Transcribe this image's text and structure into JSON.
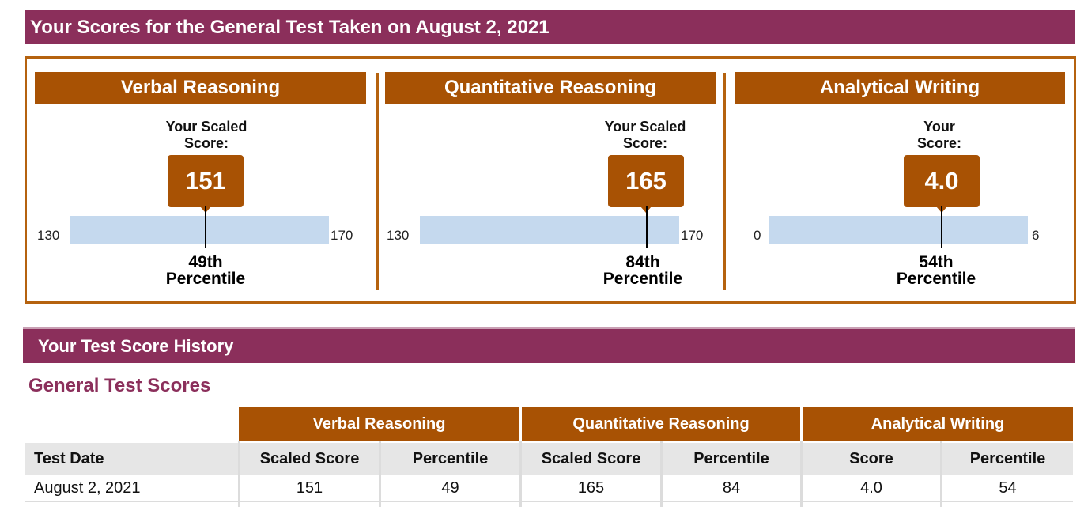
{
  "page": {
    "title": "Your Scores for the General Test Taken on August 2, 2021",
    "history_title": "Your Test Score History",
    "general_scores_title": "General Test Scores"
  },
  "sections": [
    {
      "name": "Verbal Reasoning",
      "label_line1": "Your Scaled",
      "label_line2": "Score:",
      "score": "151",
      "min": "130",
      "max": "170",
      "percentile": "49th",
      "percentile_label": "Percentile"
    },
    {
      "name": "Quantitative Reasoning",
      "label_line1": "Your Scaled",
      "label_line2": "Score:",
      "score": "165",
      "min": "130",
      "max": "170",
      "percentile": "84th",
      "percentile_label": "Percentile"
    },
    {
      "name": "Analytical Writing",
      "label_line1": "Your",
      "label_line2": "Score:",
      "score": "4.0",
      "min": "0",
      "max": "6",
      "percentile": "54th",
      "percentile_label": "Percentile"
    }
  ],
  "table": {
    "group_headers": [
      "Verbal Reasoning",
      "Quantitative Reasoning",
      "Analytical Writing"
    ],
    "columns": [
      "Test Date",
      "Scaled Score",
      "Percentile",
      "Scaled Score",
      "Percentile",
      "Score",
      "Percentile"
    ],
    "rows": [
      [
        "August 2, 2021",
        "151",
        "49",
        "165",
        "84",
        "4.0",
        "54"
      ]
    ]
  },
  "colors": {
    "banner": "#8b2f5b",
    "accent": "#a85204",
    "bar": "#c5d9ee"
  }
}
